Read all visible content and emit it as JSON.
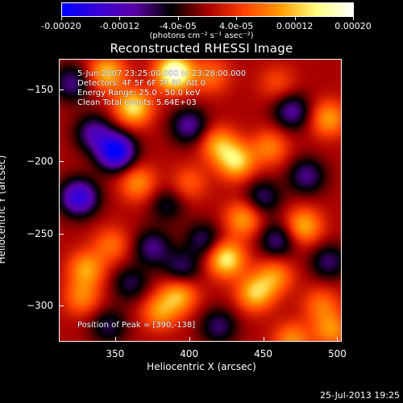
{
  "chart_data": {
    "type": "heatmap",
    "title": "Reconstructed RHESSI Image",
    "xlabel": "Heliocentric X (arcsec)",
    "ylabel": "Heliocentric Y (arcsec)",
    "xlim": [
      312,
      503
    ],
    "ylim": [
      -325,
      -129
    ],
    "x_ticks": [
      "350",
      "400",
      "450",
      "500"
    ],
    "x_tick_values": [
      350,
      400,
      450,
      500
    ],
    "y_ticks": [
      "-150",
      "-200",
      "-250",
      "-300"
    ],
    "y_tick_values": [
      -150,
      -200,
      -250,
      -300
    ],
    "colorbar": {
      "range": [
        -0.0002,
        0.0002
      ],
      "tick_labels": [
        "-0.00020",
        "-0.00012",
        "-4.0e-05",
        "4.0e-05",
        "0.00012",
        "0.00020"
      ],
      "tick_values": [
        -0.0002,
        -0.00012,
        -4e-05,
        4e-05,
        0.00012,
        0.0002
      ],
      "units_label": "(photons cm⁻² s⁻¹ asec⁻²)",
      "colors": [
        "#0000ff",
        "#3a00d8",
        "#5a00a6",
        "#000000",
        "#a80000",
        "#ff4000",
        "#ff9a00",
        "#ffff80",
        "#ffffff"
      ]
    },
    "annotations": {
      "line1": "5-Jun-2007 23:25:00.000 to 23:28:00.000",
      "line2": "Detectors: 4F 5F 6F 7F 8F, Att 0",
      "line3": "Energy Range: 25.0 - 50.0 keV",
      "line4": "Clean   Total counts: 5.64E+03",
      "peak": "Position of Peak = [390,-138]"
    },
    "sources": [
      {
        "x": 390,
        "y": -138,
        "value": 0.0002
      },
      {
        "x": 344,
        "y": -138,
        "value": 0.00012
      },
      {
        "x": 362,
        "y": -162,
        "value": 0.00014
      },
      {
        "x": 420,
        "y": -188,
        "value": 0.0001
      },
      {
        "x": 432,
        "y": -200,
        "value": 0.00013
      },
      {
        "x": 437,
        "y": -240,
        "value": 0.0001
      },
      {
        "x": 425,
        "y": -268,
        "value": 0.00015
      },
      {
        "x": 393,
        "y": -293,
        "value": 0.00011
      },
      {
        "x": 380,
        "y": -305,
        "value": 9e-05
      },
      {
        "x": 445,
        "y": -292,
        "value": 0.00012
      },
      {
        "x": 458,
        "y": -280,
        "value": 9e-05
      },
      {
        "x": 330,
        "y": -275,
        "value": 0.0001
      },
      {
        "x": 327,
        "y": -295,
        "value": 8e-05
      },
      {
        "x": 365,
        "y": -215,
        "value": 9e-05
      },
      {
        "x": 347,
        "y": -258,
        "value": 7e-05
      },
      {
        "x": 455,
        "y": -190,
        "value": 8e-05
      },
      {
        "x": 478,
        "y": -245,
        "value": 0.00011
      },
      {
        "x": 495,
        "y": -170,
        "value": 0.0001
      },
      {
        "x": 490,
        "y": -300,
        "value": 7e-05
      },
      {
        "x": 470,
        "y": -325,
        "value": 9e-05
      },
      {
        "x": 497,
        "y": -318,
        "value": 9e-05
      },
      {
        "x": 415,
        "y": -140,
        "value": 7e-05
      },
      {
        "x": 460,
        "y": -145,
        "value": 5e-05
      },
      {
        "x": 400,
        "y": -215,
        "value": 6e-05
      },
      {
        "x": 350,
        "y": -193,
        "value": -0.0002
      },
      {
        "x": 325,
        "y": -225,
        "value": -0.00016
      },
      {
        "x": 335,
        "y": -180,
        "value": -0.0001
      },
      {
        "x": 320,
        "y": -145,
        "value": -9e-05
      },
      {
        "x": 400,
        "y": -175,
        "value": -0.0001
      },
      {
        "x": 470,
        "y": -165,
        "value": -0.0001
      },
      {
        "x": 480,
        "y": -210,
        "value": -9e-05
      },
      {
        "x": 450,
        "y": -225,
        "value": -8e-05
      },
      {
        "x": 375,
        "y": -260,
        "value": -9e-05
      },
      {
        "x": 410,
        "y": -255,
        "value": -8e-05
      },
      {
        "x": 360,
        "y": -285,
        "value": -7e-05
      },
      {
        "x": 395,
        "y": -275,
        "value": -8e-05
      },
      {
        "x": 460,
        "y": -255,
        "value": -9e-05
      },
      {
        "x": 345,
        "y": -315,
        "value": -7e-05
      },
      {
        "x": 420,
        "y": -315,
        "value": -8e-05
      },
      {
        "x": 495,
        "y": -270,
        "value": -8e-05
      },
      {
        "x": 385,
        "y": -230,
        "value": -6e-05
      }
    ]
  },
  "footer": {
    "date": "25-Jul-2013 19:25"
  }
}
